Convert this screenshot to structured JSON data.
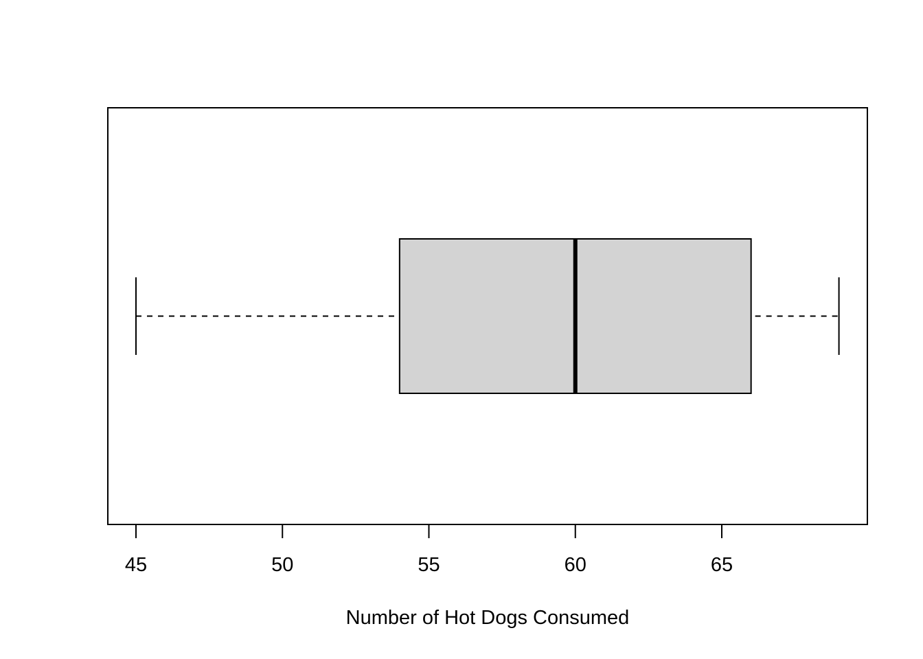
{
  "chart_data": {
    "type": "boxplot",
    "orientation": "horizontal",
    "title": "",
    "xlabel": "Number of Hot Dogs Consumed",
    "ylabel": "",
    "xlim": [
      44,
      70
    ],
    "x_ticks": [
      45,
      50,
      55,
      60,
      65
    ],
    "x_tick_labels": [
      "45",
      "50",
      "55",
      "60",
      "65"
    ],
    "grid": false,
    "box": {
      "whisker_low": 45,
      "q1": 54,
      "median": 60,
      "q3": 66,
      "whisker_high": 69
    },
    "colors": {
      "box_fill": "#d3d3d3",
      "stroke": "#000000",
      "background": "#ffffff"
    }
  }
}
